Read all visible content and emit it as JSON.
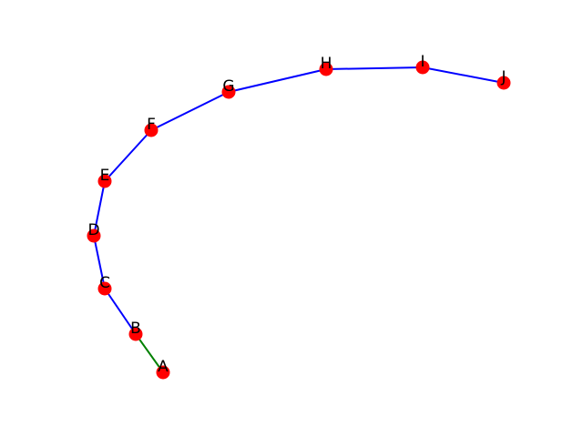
{
  "nodes": [
    {
      "id": "A",
      "label": "A"
    },
    {
      "id": "B",
      "label": "B"
    },
    {
      "id": "C",
      "label": "C"
    },
    {
      "id": "D",
      "label": "D"
    },
    {
      "id": "E",
      "label": "E"
    },
    {
      "id": "F",
      "label": "F"
    },
    {
      "id": "G",
      "label": "G"
    },
    {
      "id": "H",
      "label": "H"
    },
    {
      "id": "I",
      "label": "I"
    },
    {
      "id": "J",
      "label": "J"
    }
  ],
  "edges": [
    {
      "from": "A",
      "to": "B",
      "color": "#008000"
    },
    {
      "from": "B",
      "to": "C",
      "color": "#0000ff"
    },
    {
      "from": "C",
      "to": "D",
      "color": "#0000ff"
    },
    {
      "from": "D",
      "to": "E",
      "color": "#0000ff"
    },
    {
      "from": "E",
      "to": "F",
      "color": "#0000ff"
    },
    {
      "from": "F",
      "to": "G",
      "color": "#0000ff"
    },
    {
      "from": "G",
      "to": "H",
      "color": "#0000ff"
    },
    {
      "from": "H",
      "to": "I",
      "color": "#0000ff"
    },
    {
      "from": "I",
      "to": "J",
      "color": "#0000ff"
    }
  ],
  "colors": {
    "node": "#ff0000",
    "label": "#000000",
    "background": "#ffffff"
  }
}
